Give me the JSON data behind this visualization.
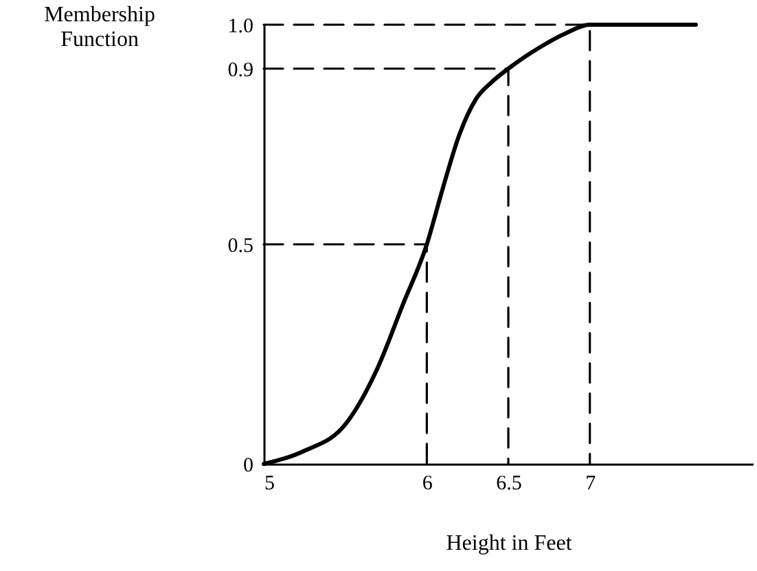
{
  "chart_data": {
    "type": "line",
    "xlabel": "Height in Feet",
    "ylabel": "Membership Function",
    "xlim": [
      5,
      8
    ],
    "ylim": [
      0,
      1
    ],
    "xticks": [
      5,
      6,
      6.5,
      7
    ],
    "yticks": [
      0,
      0.5,
      0.9,
      {
        "value": 1,
        "label": "1.0"
      }
    ],
    "grid": false,
    "series": [
      {
        "color": "#000000",
        "line_style": "solid",
        "x": [
          5,
          5.25,
          5.5,
          5.7,
          5.85,
          6,
          6.1,
          6.2,
          6.3,
          6.4,
          6.5,
          6.7,
          6.85,
          7,
          7.65
        ],
        "values": [
          0,
          0.03,
          0.09,
          0.22,
          0.36,
          0.5,
          0.63,
          0.75,
          0.83,
          0.87,
          0.9,
          0.95,
          0.98,
          1,
          1
        ]
      },
      {
        "color": "#000000",
        "line_style": "dashed",
        "x": [
          5,
          6,
          6
        ],
        "values": [
          0.5,
          0.5,
          0
        ]
      },
      {
        "color": "#000000",
        "line_style": "dashed",
        "x": [
          5,
          6.5,
          6.5
        ],
        "values": [
          0.9,
          0.9,
          0
        ]
      },
      {
        "color": "#000000",
        "line_style": "dashed",
        "x": [
          5,
          7,
          7
        ],
        "values": [
          1,
          1,
          0
        ]
      }
    ]
  }
}
